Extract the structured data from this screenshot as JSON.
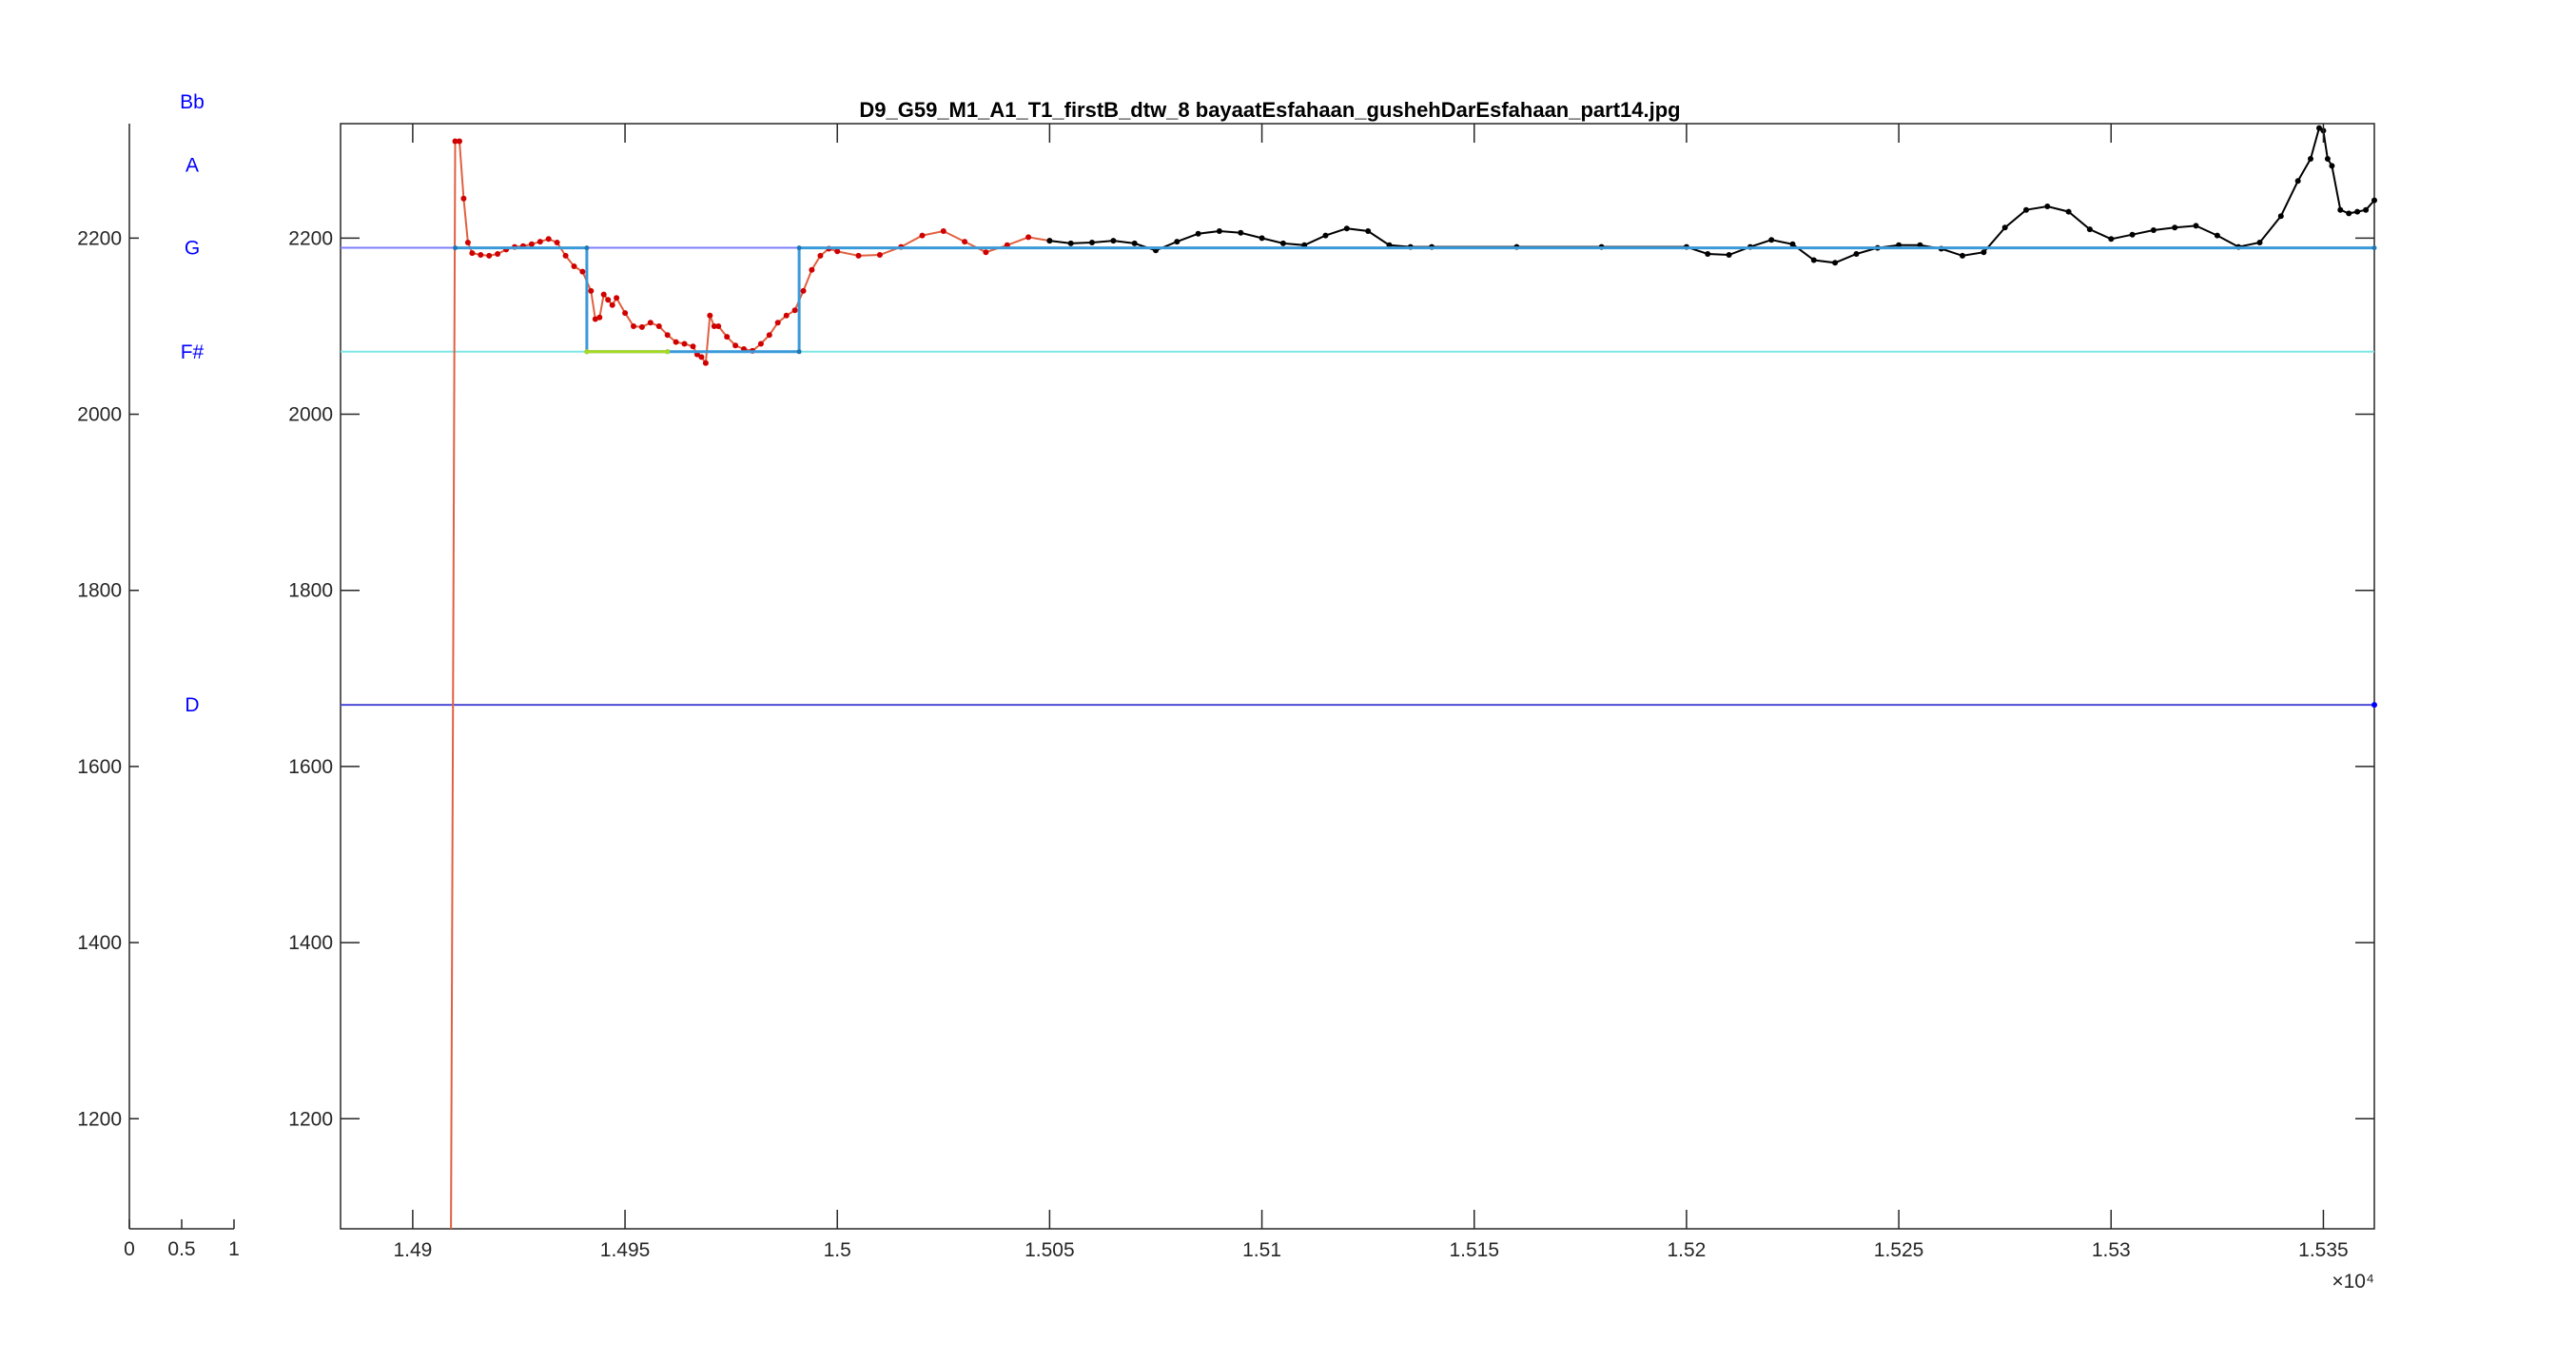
{
  "chart_data": [
    {
      "type": "line",
      "title": "",
      "xlabel": "",
      "ylabel": "",
      "xlim": [
        0,
        1
      ],
      "ylim": [
        1075,
        2330
      ],
      "xticks": [
        "0",
        "0.5",
        "1"
      ],
      "yticks": [
        "1200",
        "1400",
        "1600",
        "1800",
        "2000",
        "2200"
      ],
      "note_labels": [
        {
          "name": "Bb",
          "y": 2355
        },
        {
          "name": "A",
          "y": 2283
        },
        {
          "name": "G",
          "y": 2189
        },
        {
          "name": "F#",
          "y": 2071
        },
        {
          "name": "D",
          "y": 1670
        }
      ]
    },
    {
      "type": "line",
      "title": "D9_G59_M1_A1_T1_firstB_dtw_8 bayaatEsfahaan_gushehDarEsfahaan_part14.jpg",
      "xlabel": "",
      "ylabel": "",
      "xlim": [
        14883,
        15362
      ],
      "ylim": [
        1075,
        2330
      ],
      "x_exponent_label": "×10⁴",
      "xticks": [
        "1.49",
        "1.495",
        "1.5",
        "1.505",
        "1.51",
        "1.515",
        "1.52",
        "1.525",
        "1.53",
        "1.535"
      ],
      "xtick_values": [
        14900,
        14950,
        15000,
        15050,
        15100,
        15150,
        15200,
        15250,
        15300,
        15350
      ],
      "yticks": [
        "1200",
        "1400",
        "1600",
        "1800",
        "2000",
        "2200"
      ],
      "ytick_values": [
        1200,
        1400,
        1600,
        1800,
        2000,
        2200
      ],
      "reference_lines": [
        {
          "note": "G",
          "y": 2189,
          "color": "#7f7fff"
        },
        {
          "note": "F#",
          "y": 2071,
          "color": "#7fe5e5"
        },
        {
          "note": "D",
          "y": 1670,
          "color": "#4b4bd6"
        }
      ],
      "series": [
        {
          "color": "#e06040",
          "marker_color": "#d00000",
          "points": [
            [
              14909,
              1075
            ],
            [
              14910,
              2310
            ],
            [
              14911,
              2310
            ],
            [
              14912,
              2245
            ],
            [
              14913,
              2195
            ],
            [
              14914,
              2183
            ],
            [
              14916,
              2181
            ],
            [
              14918,
              2180
            ],
            [
              14920,
              2182
            ],
            [
              14922,
              2187
            ],
            [
              14924,
              2190
            ],
            [
              14926,
              2191
            ],
            [
              14928,
              2193
            ],
            [
              14930,
              2196
            ],
            [
              14932,
              2199
            ],
            [
              14934,
              2195
            ],
            [
              14936,
              2180
            ],
            [
              14938,
              2168
            ],
            [
              14940,
              2162
            ],
            [
              14942,
              2140
            ],
            [
              14943,
              2108
            ],
            [
              14944,
              2110
            ],
            [
              14945,
              2136
            ],
            [
              14946,
              2130
            ],
            [
              14947,
              2124
            ],
            [
              14948,
              2132
            ],
            [
              14950,
              2115
            ],
            [
              14952,
              2100
            ],
            [
              14954,
              2099
            ],
            [
              14956,
              2104
            ],
            [
              14958,
              2100
            ],
            [
              14960,
              2090
            ],
            [
              14962,
              2082
            ],
            [
              14964,
              2080
            ],
            [
              14966,
              2077
            ],
            [
              14967,
              2068
            ],
            [
              14968,
              2065
            ],
            [
              14969,
              2058
            ],
            [
              14970,
              2112
            ],
            [
              14971,
              2100
            ],
            [
              14972,
              2100
            ],
            [
              14974,
              2088
            ],
            [
              14976,
              2078
            ],
            [
              14978,
              2074
            ],
            [
              14980,
              2072
            ],
            [
              14982,
              2080
            ],
            [
              14984,
              2090
            ],
            [
              14986,
              2104
            ],
            [
              14988,
              2112
            ],
            [
              14990,
              2118
            ],
            [
              14992,
              2140
            ],
            [
              14994,
              2164
            ],
            [
              14996,
              2180
            ],
            [
              14998,
              2188
            ],
            [
              15000,
              2185
            ],
            [
              15005,
              2180
            ],
            [
              15010,
              2181
            ],
            [
              15015,
              2190
            ],
            [
              15020,
              2203
            ],
            [
              15025,
              2208
            ],
            [
              15030,
              2196
            ],
            [
              15035,
              2184
            ],
            [
              15040,
              2192
            ],
            [
              15045,
              2201
            ],
            [
              15050,
              2197
            ]
          ]
        },
        {
          "color": "#000000",
          "marker_color": "#000000",
          "points": [
            [
              15050,
              2197
            ],
            [
              15055,
              2194
            ],
            [
              15060,
              2195
            ],
            [
              15065,
              2197
            ],
            [
              15070,
              2194
            ],
            [
              15075,
              2186
            ],
            [
              15080,
              2196
            ],
            [
              15085,
              2205
            ],
            [
              15090,
              2208
            ],
            [
              15095,
              2206
            ],
            [
              15100,
              2200
            ],
            [
              15105,
              2194
            ],
            [
              15110,
              2192
            ],
            [
              15115,
              2203
            ],
            [
              15120,
              2211
            ],
            [
              15125,
              2208
            ],
            [
              15130,
              2192
            ],
            [
              15135,
              2190
            ],
            [
              15140,
              2190
            ],
            [
              15160,
              2190
            ],
            [
              15180,
              2190
            ],
            [
              15200,
              2190
            ],
            [
              15205,
              2182
            ],
            [
              15210,
              2181
            ],
            [
              15215,
              2190
            ],
            [
              15220,
              2198
            ],
            [
              15225,
              2193
            ],
            [
              15230,
              2175
            ],
            [
              15235,
              2172
            ],
            [
              15240,
              2182
            ],
            [
              15245,
              2189
            ],
            [
              15250,
              2192
            ],
            [
              15255,
              2192
            ],
            [
              15260,
              2188
            ],
            [
              15265,
              2180
            ],
            [
              15270,
              2184
            ],
            [
              15275,
              2212
            ],
            [
              15280,
              2232
            ],
            [
              15285,
              2236
            ],
            [
              15290,
              2230
            ],
            [
              15295,
              2210
            ],
            [
              15300,
              2199
            ],
            [
              15305,
              2204
            ],
            [
              15310,
              2209
            ],
            [
              15315,
              2212
            ],
            [
              15320,
              2214
            ],
            [
              15325,
              2203
            ],
            [
              15330,
              2190
            ],
            [
              15335,
              2195
            ],
            [
              15340,
              2225
            ],
            [
              15344,
              2265
            ],
            [
              15347,
              2290
            ],
            [
              15349,
              2325
            ],
            [
              15350,
              2322
            ],
            [
              15351,
              2290
            ],
            [
              15352,
              2282
            ],
            [
              15354,
              2232
            ],
            [
              15356,
              2228
            ],
            [
              15358,
              2230
            ],
            [
              15360,
              2232
            ],
            [
              15362,
              2243
            ]
          ]
        },
        {
          "color": "#3a9ad9",
          "marker_color": "#1f77b4",
          "points": [
            [
              14910,
              2189
            ],
            [
              14941,
              2189
            ],
            [
              14941,
              2071
            ],
            [
              14960,
              2071
            ],
            [
              14991,
              2071
            ],
            [
              14991,
              2189
            ],
            [
              15362,
              2189
            ]
          ]
        },
        {
          "color": "#a8d820",
          "marker_color": "#a8d820",
          "points": [
            [
              14941,
              2071
            ],
            [
              14960,
              2071
            ]
          ]
        }
      ],
      "endpoint_marker": {
        "x": 15362,
        "y": 1670,
        "color": "#0000ff"
      }
    }
  ]
}
